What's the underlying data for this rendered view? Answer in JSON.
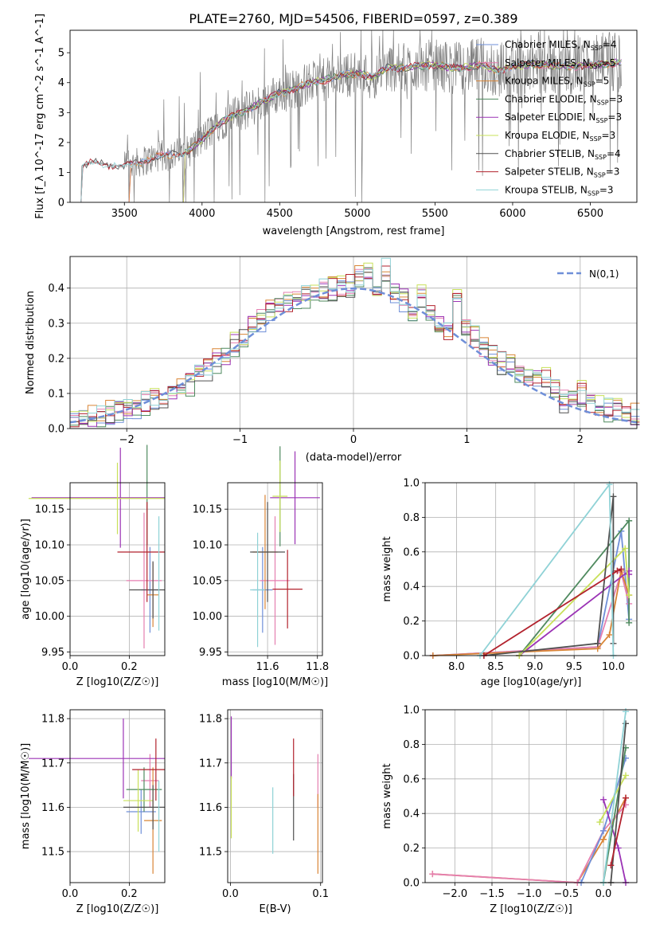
{
  "colors": {
    "c_miles": "#6f8fd8",
    "s_miles": "#e57fb0",
    "k_miles": "#d98536",
    "c_elodie": "#4f8a5f",
    "s_elodie": "#9b33b5",
    "k_elodie": "#c8e05a",
    "c_stelib": "#505050",
    "s_stelib": "#b2222d",
    "k_stelib": "#8fd2d6",
    "normal": "#6f8fd8",
    "grid": "#b0b0b0"
  },
  "chart_data": [
    {
      "type": "line",
      "id": "spectrum",
      "title": "PLATE=2760, MJD=54506, FIBERID=0597, z=0.389",
      "xlabel": "wavelength [Angstrom, rest frame]",
      "ylabel": "Flux [f_λ 10^-17 erg cm^-2 s^-1 A^-1]",
      "xlim": [
        3150,
        6800
      ],
      "ylim": [
        0,
        5.75
      ],
      "xticks": [
        3500,
        4000,
        4500,
        5000,
        5500,
        6000,
        6500
      ],
      "yticks": [
        0,
        1,
        2,
        3,
        4,
        5
      ],
      "grid": false,
      "legend_position": "top-right",
      "data_color": "#808080",
      "continuum": [
        [
          3220,
          0
        ],
        [
          3225,
          1.2
        ],
        [
          3300,
          1.35
        ],
        [
          3400,
          1.25
        ],
        [
          3500,
          1.2
        ],
        [
          3600,
          1.35
        ],
        [
          3700,
          1.5
        ],
        [
          3800,
          1.6
        ],
        [
          3900,
          1.65
        ],
        [
          4000,
          2.1
        ],
        [
          4100,
          2.6
        ],
        [
          4200,
          2.9
        ],
        [
          4300,
          3.1
        ],
        [
          4400,
          3.4
        ],
        [
          4500,
          3.65
        ],
        [
          4600,
          3.8
        ],
        [
          4700,
          4.0
        ],
        [
          4800,
          4.1
        ],
        [
          4900,
          4.25
        ],
        [
          5000,
          4.3
        ],
        [
          5100,
          4.2
        ],
        [
          5200,
          4.5
        ],
        [
          5300,
          4.5
        ],
        [
          5400,
          4.55
        ],
        [
          5500,
          4.6
        ],
        [
          5600,
          4.5
        ],
        [
          5700,
          4.5
        ],
        [
          5800,
          4.6
        ],
        [
          5900,
          4.4
        ],
        [
          6000,
          4.55
        ],
        [
          6100,
          4.6
        ],
        [
          6200,
          4.6
        ],
        [
          6300,
          4.55
        ],
        [
          6400,
          4.55
        ],
        [
          6500,
          4.6
        ],
        [
          6600,
          4.6
        ],
        [
          6700,
          4.7
        ]
      ],
      "noisy_range": [
        3500,
        6700
      ],
      "series": [
        {
          "key": "c_miles",
          "label": "Chabrier MILES, N",
          "sub": "SSP",
          "suffix": "=4",
          "start": 3530
        },
        {
          "key": "s_miles",
          "label": "Salpeter MILES, N",
          "sub": "SSP",
          "suffix": "=5",
          "start": 3530
        },
        {
          "key": "k_miles",
          "label": "Kroupa MILES, N",
          "sub": "SSP",
          "suffix": "=5",
          "start": 3530
        },
        {
          "key": "c_elodie",
          "label": "Chabrier ELODIE, N",
          "sub": "SSP",
          "suffix": "=3",
          "start": 3880
        },
        {
          "key": "s_elodie",
          "label": "Salpeter ELODIE, N",
          "sub": "SSP",
          "suffix": "=3",
          "start": 3880
        },
        {
          "key": "k_elodie",
          "label": "Kroupa ELODIE, N",
          "sub": "SSP",
          "suffix": "=3",
          "start": 3880
        },
        {
          "key": "c_stelib",
          "label": "Chabrier STELIB, N",
          "sub": "SSP",
          "suffix": "=4",
          "start": 3220
        },
        {
          "key": "s_stelib",
          "label": "Salpeter STELIB, N",
          "sub": "SSP",
          "suffix": "=3",
          "start": 3220
        },
        {
          "key": "k_stelib",
          "label": "Kroupa STELIB, N",
          "sub": "SSP",
          "suffix": "=3",
          "start": 3220
        }
      ]
    },
    {
      "type": "histogram",
      "id": "residuals",
      "xlabel": "(data-model)/error",
      "ylabel": "Normed distribution",
      "xlim": [
        -2.5,
        2.5
      ],
      "ylim": [
        0,
        0.49
      ],
      "xticks": [
        -2,
        -1,
        0,
        1,
        2
      ],
      "yticks": [
        0.0,
        0.1,
        0.2,
        0.3,
        0.4
      ],
      "grid": true,
      "legend_position": "top-right",
      "legend_label": "N(0,1)",
      "bin_width": 0.1,
      "base": [
        0.025,
        0.03,
        0.035,
        0.04,
        0.045,
        0.05,
        0.055,
        0.06,
        0.07,
        0.08,
        0.09,
        0.1,
        0.11,
        0.13,
        0.15,
        0.17,
        0.19,
        0.21,
        0.24,
        0.26,
        0.29,
        0.31,
        0.33,
        0.35,
        0.36,
        0.37,
        0.38,
        0.39,
        0.395,
        0.4,
        0.4,
        0.41,
        0.43,
        0.44,
        0.4,
        0.45,
        0.39,
        0.37,
        0.33,
        0.38,
        0.34,
        0.3,
        0.28,
        0.36,
        0.3,
        0.26,
        0.23,
        0.21,
        0.19,
        0.18,
        0.16,
        0.15,
        0.15,
        0.14,
        0.12,
        0.08,
        0.09,
        0.1,
        0.07,
        0.06,
        0.055,
        0.05,
        0.045,
        0.04
      ]
    },
    {
      "type": "scatter",
      "id": "z_age",
      "xlabel": "Z [log10(Z/Z☉)]",
      "ylabel": "age [log10(age/yr)]",
      "xlim": [
        0,
        0.32
      ],
      "ylim": [
        9.945,
        10.187
      ],
      "xticks": [
        0.0,
        0.2
      ],
      "yticks": [
        9.95,
        10.0,
        10.05,
        10.1,
        10.15
      ],
      "grid": true,
      "points": [
        {
          "key": "c_miles",
          "x": 0.27,
          "y": 10.037,
          "xe": 0.03,
          "ye": 0.06
        },
        {
          "key": "s_miles",
          "x": 0.25,
          "y": 10.05,
          "xe": 0.06,
          "ye": 0.095
        },
        {
          "key": "k_miles",
          "x": 0.28,
          "y": 10.03,
          "xe": 0.02,
          "ye": 0.045
        },
        {
          "key": "c_elodie",
          "x": 0.26,
          "y": 10.17,
          "xe": 0.0,
          "ye": 0.07
        },
        {
          "key": "s_elodie",
          "x": 0.17,
          "y": 10.166,
          "xe": 0.3,
          "ye": 0.07
        },
        {
          "key": "k_elodie",
          "x": 0.16,
          "y": 10.165,
          "xe": 0.3,
          "ye": 0.05
        },
        {
          "key": "c_stelib",
          "x": 0.28,
          "y": 10.037,
          "xe": 0.08,
          "ye": 0.04
        },
        {
          "key": "s_stelib",
          "x": 0.26,
          "y": 10.09,
          "xe": 0.1,
          "ye": 0.07
        },
        {
          "key": "k_stelib",
          "x": 0.3,
          "y": 10.06,
          "xe": 0.0,
          "ye": 0.08
        }
      ]
    },
    {
      "type": "scatter",
      "id": "mass_age",
      "xlabel": "mass [log10(M/M☉)]",
      "ylabel": "",
      "xlim": [
        11.44,
        11.82
      ],
      "ylim": [
        9.945,
        10.187
      ],
      "xticks": [
        11.6,
        11.8
      ],
      "yticks": [
        9.95,
        10.0,
        10.05,
        10.1,
        10.15
      ],
      "grid": true,
      "points": [
        {
          "key": "c_miles",
          "x": 11.58,
          "y": 10.037,
          "xe": 0.04,
          "ye": 0.06
        },
        {
          "key": "s_miles",
          "x": 11.63,
          "y": 10.05,
          "xe": 0.06,
          "ye": 0.09
        },
        {
          "key": "k_miles",
          "x": 11.59,
          "y": 10.09,
          "xe": 0.05,
          "ye": 0.08
        },
        {
          "key": "c_elodie",
          "x": 11.65,
          "y": 10.168,
          "xe": 0.0,
          "ye": 0.07
        },
        {
          "key": "s_elodie",
          "x": 11.71,
          "y": 10.166,
          "xe": 0.1,
          "ye": 0.065
        },
        {
          "key": "k_elodie",
          "x": 11.65,
          "y": 10.168,
          "xe": 0.03,
          "ye": 0.05
        },
        {
          "key": "c_stelib",
          "x": 11.6,
          "y": 10.09,
          "xe": 0.07,
          "ye": 0.07
        },
        {
          "key": "s_stelib",
          "x": 11.68,
          "y": 10.038,
          "xe": 0.06,
          "ye": 0.055
        },
        {
          "key": "k_stelib",
          "x": 11.56,
          "y": 10.037,
          "xe": 0.03,
          "ye": 0.08
        }
      ]
    },
    {
      "type": "line",
      "id": "age_weight",
      "xlabel": "age [log10(age/yr)]",
      "ylabel": "mass weight",
      "xlim": [
        7.6,
        10.3
      ],
      "ylim": [
        0,
        1.0
      ],
      "xticks": [
        8.0,
        8.5,
        9.0,
        9.5,
        10.0
      ],
      "yticks": [
        0.0,
        0.2,
        0.4,
        0.6,
        0.8,
        1.0
      ],
      "grid": true,
      "series": [
        {
          "key": "c_miles",
          "points": [
            [
              7.7,
              0.0
            ],
            [
              9.8,
              0.05
            ],
            [
              10.1,
              0.72
            ],
            [
              10.2,
              0.21
            ]
          ]
        },
        {
          "key": "s_miles",
          "points": [
            [
              7.7,
              0.0
            ],
            [
              9.8,
              0.05
            ],
            [
              10.1,
              0.48
            ],
            [
              10.2,
              0.3
            ]
          ]
        },
        {
          "key": "k_miles",
          "points": [
            [
              7.7,
              0.0
            ],
            [
              9.8,
              0.04
            ],
            [
              9.95,
              0.12
            ],
            [
              10.1,
              0.49
            ],
            [
              10.2,
              0.35
            ]
          ]
        },
        {
          "key": "c_elodie",
          "points": [
            [
              8.8,
              0.0
            ],
            [
              10.2,
              0.78
            ],
            [
              10.2,
              0.19
            ]
          ]
        },
        {
          "key": "s_elodie",
          "points": [
            [
              8.8,
              0.0
            ],
            [
              10.2,
              0.49
            ],
            [
              10.2,
              0.47
            ]
          ]
        },
        {
          "key": "k_elodie",
          "points": [
            [
              8.8,
              0.0
            ],
            [
              10.15,
              0.62
            ],
            [
              10.2,
              0.35
            ]
          ]
        },
        {
          "key": "c_stelib",
          "points": [
            [
              8.35,
              0.0
            ],
            [
              9.8,
              0.07
            ],
            [
              10.0,
              0.92
            ],
            [
              10.0,
              0.07
            ]
          ]
        },
        {
          "key": "s_stelib",
          "points": [
            [
              8.35,
              0.0
            ],
            [
              10.05,
              0.49
            ],
            [
              10.1,
              0.5
            ]
          ]
        },
        {
          "key": "k_stelib",
          "points": [
            [
              8.3,
              0.0
            ],
            [
              9.95,
              0.99
            ],
            [
              10.0,
              0.0
            ]
          ]
        }
      ]
    },
    {
      "type": "scatter",
      "id": "z_mass",
      "xlabel": "Z [log10(Z/Z☉)]",
      "ylabel": "mass [log10(M/M☉)]",
      "xlim": [
        0,
        0.32
      ],
      "ylim": [
        11.43,
        11.82
      ],
      "xticks": [
        0.0,
        0.2
      ],
      "yticks": [
        11.5,
        11.6,
        11.7,
        11.8
      ],
      "grid": true,
      "points": [
        {
          "key": "c_miles",
          "x": 0.24,
          "y": 11.59,
          "xe": 0.05,
          "ye": 0.05
        },
        {
          "key": "s_miles",
          "x": 0.27,
          "y": 11.66,
          "xe": 0.03,
          "ye": 0.06
        },
        {
          "key": "k_miles",
          "x": 0.28,
          "y": 11.57,
          "xe": 0.03,
          "ye": 0.12
        },
        {
          "key": "c_elodie",
          "x": 0.25,
          "y": 11.64,
          "xe": 0.06,
          "ye": 0.05
        },
        {
          "key": "s_elodie",
          "x": 0.18,
          "y": 11.71,
          "xe": 0.32,
          "ye": 0.09
        },
        {
          "key": "k_elodie",
          "x": 0.23,
          "y": 11.615,
          "xe": 0.05,
          "ye": 0.07
        },
        {
          "key": "c_stelib",
          "x": 0.28,
          "y": 11.6,
          "xe": 0.1,
          "ye": 0.05
        },
        {
          "key": "s_stelib",
          "x": 0.29,
          "y": 11.685,
          "xe": 0.08,
          "ye": 0.07
        },
        {
          "key": "k_stelib",
          "x": 0.3,
          "y": 11.58,
          "xe": 0.0,
          "ye": 0.08
        }
      ]
    },
    {
      "type": "scatter",
      "id": "ebv_mass",
      "xlabel": "E(B-V)",
      "ylabel": "",
      "xlim": [
        -0.003,
        0.102
      ],
      "ylim": [
        11.43,
        11.82
      ],
      "xticks": [
        0.0,
        0.1
      ],
      "yticks": [
        11.5,
        11.6,
        11.7,
        11.8
      ],
      "grid": true,
      "points": [
        {
          "key": "s_elodie",
          "x": 0.001,
          "y": 11.735,
          "xe": 0,
          "ye": 0.07
        },
        {
          "key": "k_elodie",
          "x": 0.001,
          "y": 11.6,
          "xe": 0,
          "ye": 0.07
        },
        {
          "key": "k_stelib",
          "x": 0.047,
          "y": 11.57,
          "xe": 0,
          "ye": 0.075
        },
        {
          "key": "c_stelib",
          "x": 0.07,
          "y": 11.6,
          "xe": 0,
          "ye": 0.075
        },
        {
          "key": "s_stelib",
          "x": 0.07,
          "y": 11.69,
          "xe": 0,
          "ye": 0.065
        },
        {
          "key": "s_miles",
          "x": 0.097,
          "y": 11.66,
          "xe": 0,
          "ye": 0.06
        },
        {
          "key": "k_miles",
          "x": 0.097,
          "y": 11.54,
          "xe": 0,
          "ye": 0.09
        }
      ]
    },
    {
      "type": "line",
      "id": "z_weight",
      "xlabel": "Z [log10(Z/Z☉)]",
      "ylabel": "mass weight",
      "xlim": [
        -2.4,
        0.45
      ],
      "ylim": [
        0,
        1.0
      ],
      "xticks": [
        -2.0,
        -1.5,
        -1.0,
        -0.5,
        0.0
      ],
      "yticks": [
        0.0,
        0.2,
        0.4,
        0.6,
        0.8,
        1.0
      ],
      "grid": true,
      "series": [
        {
          "key": "k_miles",
          "points": [
            [
              -2.3,
              0.05
            ],
            [
              -0.35,
              0.0
            ],
            [
              0.0,
              0.25
            ],
            [
              0.3,
              0.49
            ]
          ]
        },
        {
          "key": "s_miles",
          "points": [
            [
              -2.3,
              0.05
            ],
            [
              -0.35,
              0.0
            ],
            [
              0.0,
              0.3
            ],
            [
              0.3,
              0.45
            ]
          ]
        },
        {
          "key": "c_miles",
          "points": [
            [
              -0.3,
              0.0
            ],
            [
              0.0,
              0.3
            ],
            [
              0.3,
              0.72
            ]
          ]
        },
        {
          "key": "s_elodie",
          "points": [
            [
              0.0,
              0.48
            ],
            [
              0.2,
              0.2
            ],
            [
              0.3,
              0.0
            ]
          ]
        },
        {
          "key": "c_elodie",
          "points": [
            [
              0.0,
              0.0
            ],
            [
              0.3,
              0.78
            ]
          ]
        },
        {
          "key": "k_elodie",
          "points": [
            [
              -0.05,
              0.35
            ],
            [
              0.3,
              0.62
            ]
          ]
        },
        {
          "key": "c_stelib",
          "points": [
            [
              0.1,
              0.0
            ],
            [
              0.3,
              0.92
            ]
          ]
        },
        {
          "key": "s_stelib",
          "points": [
            [
              0.1,
              0.1
            ],
            [
              0.3,
              0.49
            ]
          ]
        },
        {
          "key": "k_stelib",
          "points": [
            [
              0.0,
              0.0
            ],
            [
              0.3,
              0.99
            ]
          ]
        }
      ]
    }
  ]
}
